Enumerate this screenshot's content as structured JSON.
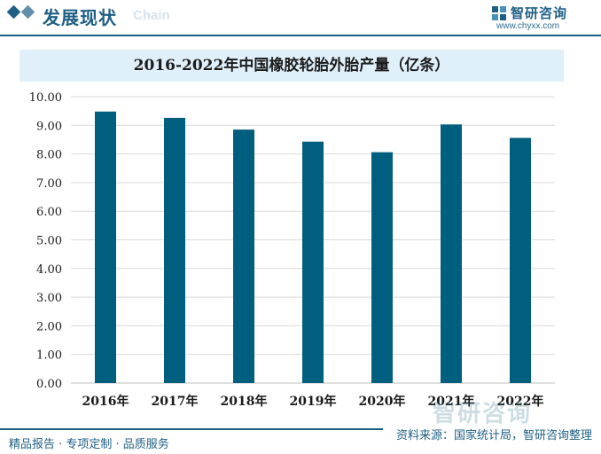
{
  "header": {
    "section_title": "发展现状",
    "section_subtitle": "Chain",
    "brand_name": "智研咨询",
    "brand_url": "www.chyxx.com"
  },
  "footer": {
    "left_text": "精品报告 · 专项定制 · 品质服务",
    "source_text": "资料来源：国家统计局，智研咨询整理",
    "watermark_text": "智研咨询"
  },
  "colors": {
    "bar": "#005f7f",
    "accent": "#1f5f86",
    "title_background": "#e0f0fa",
    "grid": "#d9d9d9"
  },
  "chart_data": {
    "type": "bar",
    "title": "2016-2022年中国橡胶轮胎外胎产量（亿条）",
    "categories": [
      "2016年",
      "2017年",
      "2018年",
      "2019年",
      "2020年",
      "2021年",
      "2022年"
    ],
    "values": [
      9.48,
      9.26,
      8.85,
      8.43,
      8.06,
      9.03,
      8.56
    ],
    "ylim": [
      0,
      10
    ],
    "yticks": [
      "0.00",
      "1.00",
      "2.00",
      "3.00",
      "4.00",
      "5.00",
      "6.00",
      "7.00",
      "8.00",
      "9.00",
      "10.00"
    ],
    "grid": true,
    "legend": "none"
  }
}
